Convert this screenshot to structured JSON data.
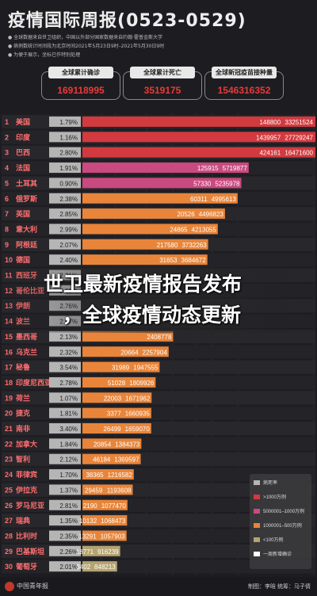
{
  "header": {
    "title_prefix": "疫情国际周报",
    "title_dates": "(0523-0529)",
    "notes": [
      "● 全球数据来自世卫组织，中国以外部分国家数据来自约翰·霍普金斯大学",
      "● 病例数统计时间段为北京时间2021年5月23日9时–2021年5月30日9时",
      "● 为便于展示，坐标已作特别处理"
    ]
  },
  "cards": [
    {
      "label": "全球累计确诊",
      "value": "169118995"
    },
    {
      "label": "全球累计死亡",
      "value": "3519175"
    },
    {
      "label": "全球新冠疫苗接种量",
      "value": "1546316352"
    }
  ],
  "overlay": {
    "line1": "世卫最新疫情报告发布",
    "line2": "，全球疫情动态更新"
  },
  "colors": {
    "death": "#b5b5b5",
    "over10m": "#d23a3f",
    "m5to10": "#c94a80",
    "m1to5": "#e8853a",
    "k0to500": "#e9a84c",
    "under100k": "#b5a470"
  },
  "legend": [
    {
      "label": "病死率",
      "color": "#b5b5b5"
    },
    {
      "label": ">1000万例",
      "color": "#d23a3f"
    },
    {
      "label": "5000001–1000万例",
      "color": "#c94a80"
    },
    {
      "label": "1000001–500万例",
      "color": "#e8853a"
    },
    {
      "label": "<100万例",
      "color": "#b5a470"
    },
    {
      "label": "一周新增确诊",
      "color": "#ffffff"
    }
  ],
  "chart_data": {
    "type": "bar",
    "categories": [
      "美国",
      "印度",
      "巴西",
      "法国",
      "土耳其",
      "俄罗斯",
      "英国",
      "意大利",
      "阿根廷",
      "德国",
      "西班牙",
      "哥伦比亚",
      "伊朗",
      "波兰",
      "墨西哥",
      "乌克兰",
      "秘鲁",
      "印度尼西亚",
      "荷兰",
      "捷克",
      "南非",
      "加拿大",
      "智利",
      "菲律宾",
      "伊拉克",
      "罗马尼亚",
      "瑞典",
      "比利时",
      "巴基斯坦",
      "葡萄牙"
    ],
    "ranks": [
      1,
      2,
      3,
      4,
      5,
      6,
      7,
      8,
      9,
      10,
      11,
      12,
      13,
      14,
      15,
      16,
      17,
      18,
      19,
      20,
      21,
      22,
      23,
      24,
      25,
      26,
      27,
      28,
      29,
      30
    ],
    "fatality_rate": [
      "1.79%",
      "1.16%",
      "2.80%",
      "1.91%",
      "0.90%",
      "2.38%",
      "2.85%",
      "2.99%",
      "2.07%",
      "2.40%",
      "2.21%",
      "2.61%",
      "2.76%",
      "2.57%",
      "2.13%",
      "2.32%",
      "3.54%",
      "2.78%",
      "1.07%",
      "1.81%",
      "3.40%",
      "1.84%",
      "2.12%",
      "1.70%",
      "1.37%",
      "2.81%",
      "1.35%",
      "2.35%",
      "2.26%",
      "2.01%"
    ],
    "weekly_new": [
      148800,
      1439957,
      424161,
      125915,
      57330,
      60311,
      20526,
      24865,
      217580,
      31653,
      null,
      null,
      null,
      null,
      null,
      20664,
      31989,
      51028,
      22003,
      3377,
      26499,
      20854,
      46184,
      38365,
      29459,
      2190,
      10132,
      13291,
      18771,
      3402
    ],
    "cumulative": [
      33251524,
      27729247,
      16471600,
      5719877,
      5235978,
      4995613,
      4496823,
      4213055,
      3732263,
      3684672,
      null,
      null,
      null,
      null,
      2408778,
      2257904,
      1947555,
      1809926,
      1671962,
      1660935,
      1659070,
      1384373,
      1369597,
      1216582,
      1193608,
      1077470,
      1068473,
      1057903,
      916239,
      848213
    ],
    "color_class": [
      "over10m",
      "over10m",
      "over10m",
      "m5to10",
      "m5to10",
      "m1to5",
      "m1to5",
      "m1to5",
      "m1to5",
      "m1to5",
      "m1to5",
      "m1to5",
      "m1to5",
      "m1to5",
      "m1to5",
      "m1to5",
      "m1to5",
      "m1to5",
      "m1to5",
      "m1to5",
      "m1to5",
      "m1to5",
      "m1to5",
      "m1to5",
      "m1to5",
      "m1to5",
      "m1to5",
      "m1to5",
      "under100k",
      "under100k"
    ],
    "x_ticks": [
      "0",
      "800000",
      "1500000",
      "2400000",
      "3000000",
      "4000000",
      "5000000",
      "10000000"
    ],
    "legend_position": "bottom-right"
  },
  "footer": {
    "logo_text": "中国青年报",
    "credits": "制图：李晗  统筹：马子倩"
  }
}
